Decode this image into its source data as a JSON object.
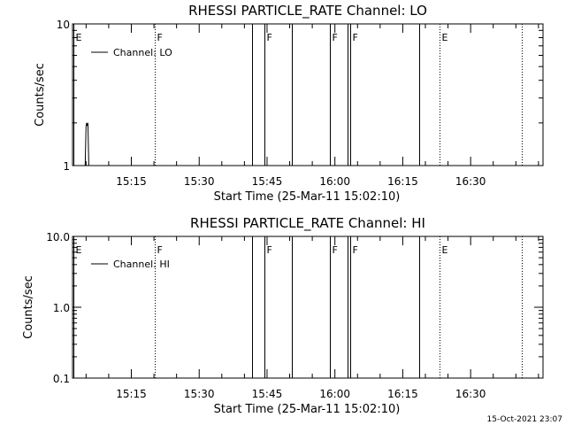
{
  "footer_timestamp": "15-Oct-2021 23:07",
  "chart_data": [
    {
      "type": "line",
      "title": "RHESSI PARTICLE_RATE Channel: LO",
      "xlabel": "Start Time (25-Mar-11 15:02:10)",
      "ylabel": "Counts/sec",
      "yscale": "log",
      "ylim": [
        1,
        10
      ],
      "xlim_min": [
        0,
        104
      ],
      "ytick_values": [
        1,
        10
      ],
      "ytick_labels": [
        "1",
        "10"
      ],
      "xtick_values": [
        13,
        28,
        43,
        58,
        73,
        88
      ],
      "xtick_labels": [
        "15:15",
        "15:30",
        "15:45",
        "16:00",
        "16:15",
        "16:30"
      ],
      "legend": {
        "label": "Channel: LO",
        "placement": "top-left"
      },
      "series": [
        {
          "name": "Channel: LO",
          "x": [
            2.8,
            3.0,
            3.1,
            3.3,
            3.4,
            3.6
          ],
          "y": [
            1,
            1.9,
            2.0,
            1.9,
            2.0,
            1
          ]
        }
      ],
      "events": [
        {
          "label": "E",
          "t": 0.1,
          "style": "solid"
        },
        {
          "label": "F",
          "t": 18.2,
          "style": "dotted"
        },
        {
          "label": "",
          "t": 39.6,
          "style": "solid"
        },
        {
          "label": "F",
          "t": 42.4,
          "style": "solid"
        },
        {
          "label": "",
          "t": 48.4,
          "style": "solid"
        },
        {
          "label": "F",
          "t": 56.9,
          "style": "solid"
        },
        {
          "label": "",
          "t": 60.8,
          "style": "solid"
        },
        {
          "label": "F",
          "t": 61.3,
          "style": "solid"
        },
        {
          "label": "",
          "t": 76.6,
          "style": "solid"
        },
        {
          "label": "E",
          "t": 81.1,
          "style": "dotted"
        },
        {
          "label": "",
          "t": 99.4,
          "style": "dotted"
        }
      ]
    },
    {
      "type": "line",
      "title": "RHESSI PARTICLE_RATE Channel: HI",
      "xlabel": "Start Time (25-Mar-11 15:02:10)",
      "ylabel": "Counts/sec",
      "yscale": "log",
      "ylim": [
        0.1,
        10
      ],
      "xlim_min": [
        0,
        104
      ],
      "ytick_values": [
        0.1,
        1,
        10
      ],
      "ytick_labels": [
        "0.1",
        "1.0",
        "10.0"
      ],
      "xtick_values": [
        13,
        28,
        43,
        58,
        73,
        88
      ],
      "xtick_labels": [
        "15:15",
        "15:30",
        "15:45",
        "16:00",
        "16:15",
        "16:30"
      ],
      "legend": {
        "label": "Channel: HI",
        "placement": "top-left"
      },
      "series": [
        {
          "name": "Channel: HI",
          "x": [],
          "y": []
        }
      ],
      "events": [
        {
          "label": "E",
          "t": 0.1,
          "style": "solid"
        },
        {
          "label": "F",
          "t": 18.2,
          "style": "dotted"
        },
        {
          "label": "",
          "t": 39.6,
          "style": "solid"
        },
        {
          "label": "F",
          "t": 42.4,
          "style": "solid"
        },
        {
          "label": "",
          "t": 48.4,
          "style": "solid"
        },
        {
          "label": "F",
          "t": 56.9,
          "style": "solid"
        },
        {
          "label": "",
          "t": 60.8,
          "style": "solid"
        },
        {
          "label": "F",
          "t": 61.3,
          "style": "solid"
        },
        {
          "label": "",
          "t": 76.6,
          "style": "solid"
        },
        {
          "label": "E",
          "t": 81.1,
          "style": "dotted"
        },
        {
          "label": "",
          "t": 99.4,
          "style": "dotted"
        }
      ]
    }
  ]
}
